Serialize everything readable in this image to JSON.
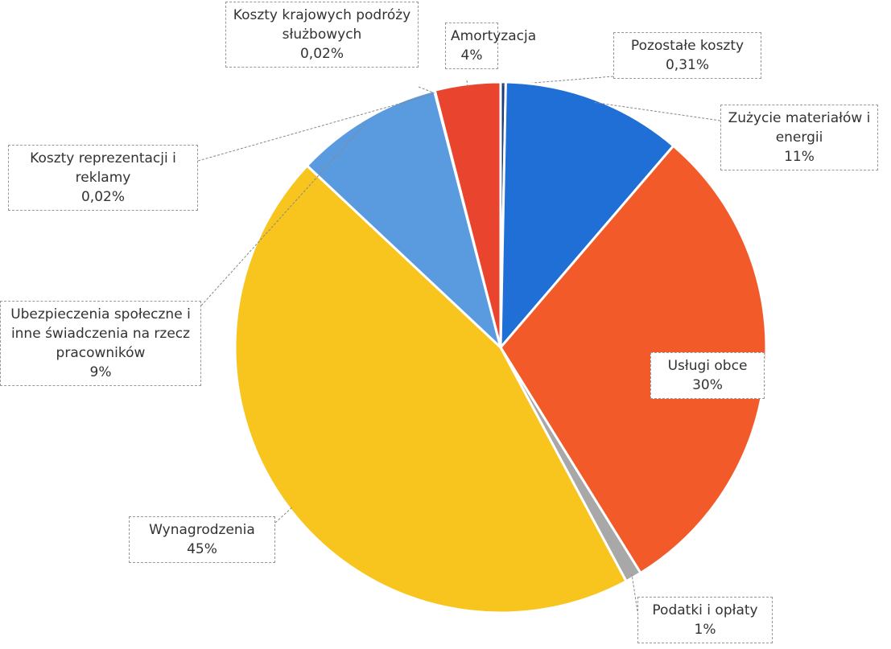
{
  "chart_data": {
    "type": "pie",
    "categories": [
      "Pozostałe koszty",
      "Zużycie materiałów i energii",
      "Usługi obce",
      "Podatki i opłaty",
      "Wynagrodzenia",
      "Ubezpieczenia społeczne i inne świadczenia na rzecz pracowników",
      "Koszty reprezentacji i reklamy",
      "Koszty krajowych podróży służbowych",
      "Amortyzacja"
    ],
    "values": [
      0.31,
      11,
      30,
      1,
      45,
      9,
      0.02,
      0.02,
      4
    ],
    "value_labels": [
      "0,31%",
      "11%",
      "30%",
      "1%",
      "45%",
      "9%",
      "0,02%",
      "0,02%",
      "4%"
    ],
    "colors": [
      "#1f3c78",
      "#1f6fd6",
      "#f25a2a",
      "#a8a8a8",
      "#f7c51e",
      "#5a9be0",
      "#8fb8e8",
      "#d0d0d0",
      "#e9452e"
    ]
  }
}
